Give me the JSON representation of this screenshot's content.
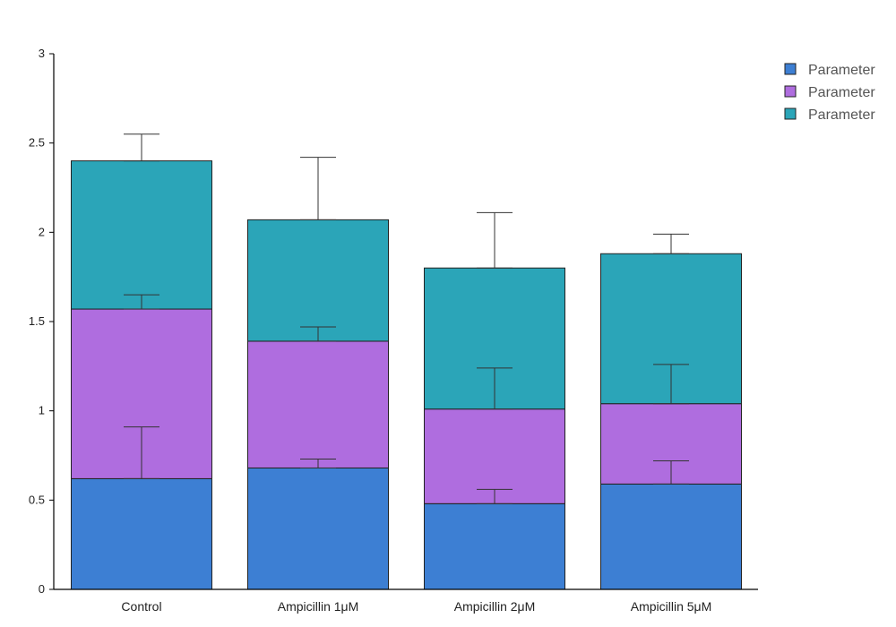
{
  "chart_data": {
    "type": "bar",
    "stacked": true,
    "categories": [
      "Control",
      "Ampicillin 1μM",
      "Ampicillin 2μM",
      "Ampicillin 5μM"
    ],
    "series": [
      {
        "name": "Parameter",
        "color": "#3d7fd3",
        "values": [
          0.62,
          0.68,
          0.48,
          0.59
        ],
        "errors": [
          0.29,
          0.05,
          0.08,
          0.13
        ]
      },
      {
        "name": "Parameter",
        "color": "#af6ddf",
        "values": [
          0.95,
          0.71,
          0.53,
          0.45
        ],
        "errors": [
          0.08,
          0.08,
          0.23,
          0.22
        ]
      },
      {
        "name": "Parameter",
        "color": "#2ba5b8",
        "values": [
          0.83,
          0.68,
          0.79,
          0.84
        ],
        "errors": [
          0.15,
          0.35,
          0.31,
          0.11
        ]
      }
    ],
    "y_ticks": [
      "0",
      "0.5",
      "1",
      "1.5",
      "2",
      "2.5",
      "3"
    ],
    "ylim": [
      0,
      3
    ],
    "title": "",
    "xlabel": "",
    "ylabel": "",
    "grid": false,
    "legend_position": "top-right",
    "axis_color": "#000000"
  }
}
